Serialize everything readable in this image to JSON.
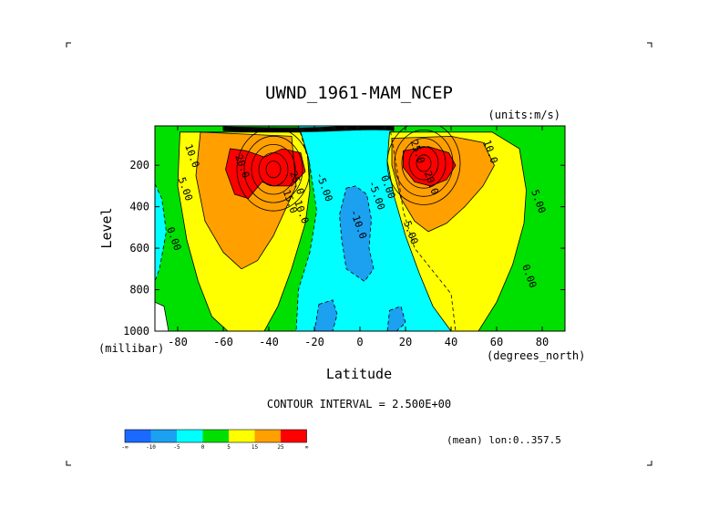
{
  "chart_data": {
    "type": "heatmap",
    "subtype": "filled-contour",
    "title": "UWND_1961-MAM_NCEP",
    "units_label": "(units:m/s)",
    "xlabel": "Latitude",
    "ylabel": "Level",
    "x_units_label": "(degrees_north)",
    "y_units_label": "(millibar)",
    "xlim": [
      -90,
      90
    ],
    "ylim": [
      1000,
      10
    ],
    "y_inverted": true,
    "x_ticks": [
      -80,
      -60,
      -40,
      -20,
      0,
      20,
      40,
      60,
      80
    ],
    "y_ticks": [
      200,
      400,
      600,
      800,
      1000
    ],
    "contour_interval_text": "CONTOUR INTERVAL = 2.500E+00",
    "mean_note": "(mean) lon:0..357.5",
    "jets": [
      {
        "lat": -38,
        "level": 220,
        "max": 30
      },
      {
        "lat": 28,
        "level": 190,
        "max": 33
      }
    ],
    "contour_labels": [
      {
        "text": "10.0",
        "lat": -75,
        "level": 160
      },
      {
        "text": "5.00",
        "lat": -78,
        "level": 320
      },
      {
        "text": "0.00",
        "lat": -83,
        "level": 560
      },
      {
        "text": "20.0",
        "lat": -53,
        "level": 210
      },
      {
        "text": "25.0",
        "lat": -29,
        "level": 290
      },
      {
        "text": "15.0",
        "lat": -32,
        "level": 380
      },
      {
        "text": "10.0",
        "lat": -27,
        "level": 430
      },
      {
        "text": "-5.00",
        "lat": -17,
        "level": 310
      },
      {
        "text": "-10.0",
        "lat": -2,
        "level": 490
      },
      {
        "text": "-5.00",
        "lat": 6,
        "level": 350
      },
      {
        "text": "0.00",
        "lat": 11,
        "level": 310
      },
      {
        "text": "5.00",
        "lat": 21,
        "level": 530
      },
      {
        "text": "25.0",
        "lat": 24,
        "level": 140
      },
      {
        "text": "20.0",
        "lat": 30,
        "level": 290
      },
      {
        "text": "10.0",
        "lat": 56,
        "level": 140
      },
      {
        "text": "5.00",
        "lat": 77,
        "level": 380
      },
      {
        "text": "0.00",
        "lat": 73,
        "level": 740
      }
    ],
    "colorbar": {
      "levels": [
        "-∞",
        "-10",
        "-5",
        "0",
        "5",
        "15",
        "25",
        "∞"
      ],
      "colors": [
        "#1a6aff",
        "#1ca0f0",
        "#00ffff",
        "#00e000",
        "#ffff00",
        "#ffa000",
        "#ff0000"
      ]
    }
  }
}
